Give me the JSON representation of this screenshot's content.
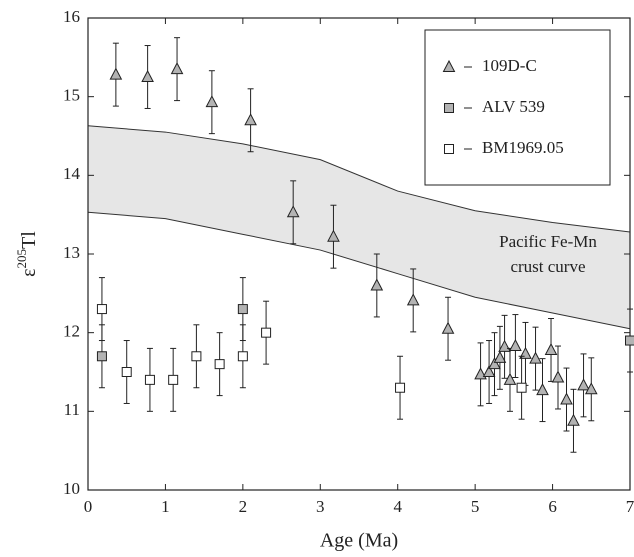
{
  "chart_data": {
    "type": "scatter",
    "xlabel": "Age (Ma)",
    "ylabel": {
      "symbol": "ε",
      "sup": "205",
      "rest": "Tl"
    },
    "xlim": [
      0,
      7
    ],
    "xticks": [
      0,
      1,
      2,
      3,
      4,
      5,
      6,
      7
    ],
    "ylim": [
      10,
      16
    ],
    "yticks": [
      10,
      11,
      12,
      13,
      14,
      15,
      16
    ],
    "legend": "upper right",
    "band": {
      "color": "#e6e6e6",
      "annotation": [
        "Pacific Fe-Mn",
        "crust curve"
      ],
      "x": [
        0,
        1,
        2,
        3,
        4,
        5,
        6,
        7
      ],
      "upper": [
        14.63,
        14.55,
        14.4,
        14.2,
        13.8,
        13.55,
        13.4,
        13.28
      ],
      "lower": [
        13.53,
        13.45,
        13.25,
        13.05,
        12.75,
        12.45,
        12.25,
        12.05
      ]
    },
    "series": [
      {
        "name": "109D-C",
        "marker": "triangle",
        "color": "#b3b3b3",
        "x": [
          0.36,
          0.77,
          1.15,
          1.6,
          2.1,
          2.65,
          3.17,
          3.73,
          4.2,
          4.65,
          5.07,
          5.18,
          5.25,
          5.32,
          5.38,
          5.45,
          5.52,
          5.65,
          5.78,
          5.87,
          5.98,
          6.07,
          6.18,
          6.27,
          6.4,
          6.5
        ],
        "values": [
          15.28,
          15.25,
          15.35,
          14.93,
          14.7,
          13.53,
          13.22,
          12.6,
          12.41,
          12.05,
          11.47,
          11.5,
          11.6,
          11.68,
          11.82,
          11.4,
          11.83,
          11.73,
          11.67,
          11.27,
          11.78,
          11.43,
          11.15,
          10.88,
          11.33,
          11.28
        ],
        "errors": [
          0.4,
          0.4,
          0.4,
          0.4,
          0.4,
          0.4,
          0.4,
          0.4,
          0.4,
          0.4,
          0.4,
          0.4,
          0.4,
          0.4,
          0.4,
          0.4,
          0.4,
          0.4,
          0.4,
          0.4,
          0.4,
          0.4,
          0.4,
          0.4,
          0.4,
          0.4
        ]
      },
      {
        "name": "ALV 539",
        "marker": "square",
        "color": "#b3b3b3",
        "x": [
          0.18,
          2.0,
          7.0
        ],
        "values": [
          11.7,
          12.3,
          11.9
        ],
        "errors": [
          0.4,
          0.4,
          0.4
        ]
      },
      {
        "name": "BM1969.05",
        "marker": "square",
        "color": "#ffffff",
        "x": [
          0.18,
          0.5,
          0.8,
          1.1,
          1.4,
          1.7,
          2.0,
          2.3,
          4.03,
          5.6
        ],
        "values": [
          12.3,
          11.5,
          11.4,
          11.4,
          11.7,
          11.6,
          11.7,
          12.0,
          11.3,
          11.3
        ],
        "errors": [
          0.4,
          0.4,
          0.4,
          0.4,
          0.4,
          0.4,
          0.4,
          0.4,
          0.4,
          0.4
        ]
      }
    ]
  }
}
